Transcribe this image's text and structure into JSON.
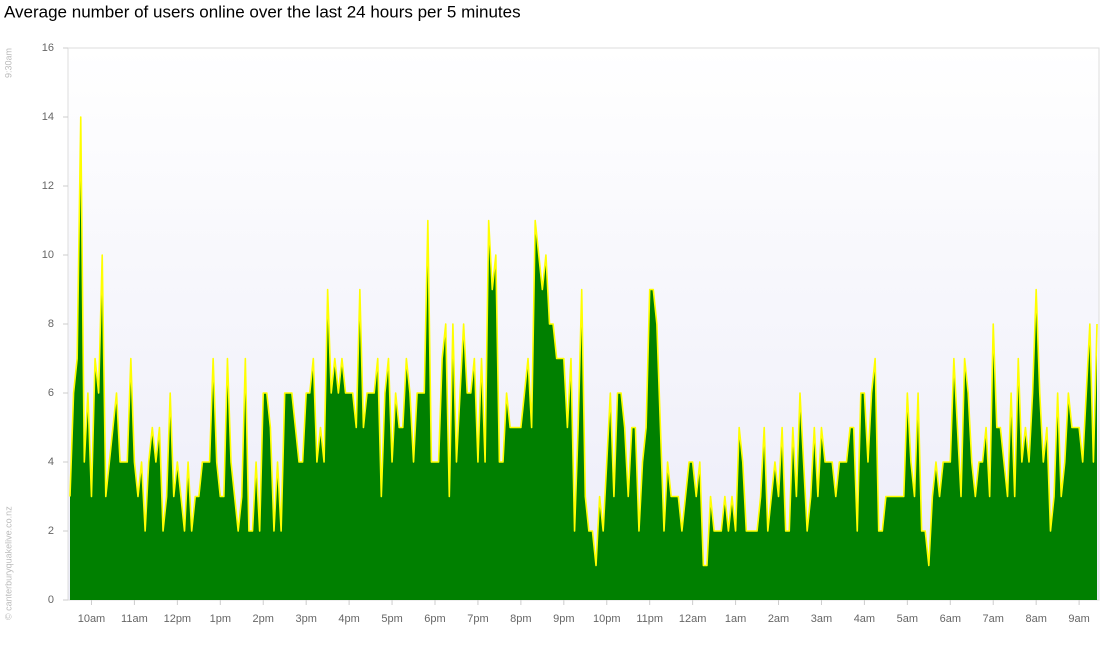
{
  "chart_data": {
    "type": "area",
    "title": "Average number of users online over the last 24 hours per 5 minutes",
    "start_label": "9:30am",
    "credit": "© canterburyquakelive.co.nz",
    "color": "#008000",
    "line_color": "#ffff00",
    "ylim": [
      0,
      16
    ],
    "yticks": [
      0,
      2,
      4,
      6,
      8,
      10,
      12,
      14,
      16
    ],
    "categories": [
      null,
      null,
      null,
      null,
      null,
      null,
      "10am",
      null,
      null,
      null,
      null,
      null,
      null,
      null,
      null,
      null,
      null,
      null,
      "11am",
      null,
      null,
      null,
      null,
      null,
      null,
      null,
      null,
      null,
      null,
      null,
      "12pm",
      null,
      null,
      null,
      null,
      null,
      null,
      null,
      null,
      null,
      null,
      null,
      "1pm",
      null,
      null,
      null,
      null,
      null,
      null,
      null,
      null,
      null,
      null,
      null,
      "2pm",
      null,
      null,
      null,
      null,
      null,
      null,
      null,
      null,
      null,
      null,
      null,
      "3pm",
      null,
      null,
      null,
      null,
      null,
      null,
      null,
      null,
      null,
      null,
      null,
      "4pm",
      null,
      null,
      null,
      null,
      null,
      null,
      null,
      null,
      null,
      null,
      null,
      "5pm",
      null,
      null,
      null,
      null,
      null,
      null,
      null,
      null,
      null,
      null,
      null,
      "6pm",
      null,
      null,
      null,
      null,
      null,
      null,
      null,
      null,
      null,
      null,
      null,
      "7pm",
      null,
      null,
      null,
      null,
      null,
      null,
      null,
      null,
      null,
      null,
      null,
      "8pm",
      null,
      null,
      null,
      null,
      null,
      null,
      null,
      null,
      null,
      null,
      null,
      "9pm",
      null,
      null,
      null,
      null,
      null,
      null,
      null,
      null,
      null,
      null,
      null,
      "10pm",
      null,
      null,
      null,
      null,
      null,
      null,
      null,
      null,
      null,
      null,
      null,
      "11pm",
      null,
      null,
      null,
      null,
      null,
      null,
      null,
      null,
      null,
      null,
      null,
      "12am",
      null,
      null,
      null,
      null,
      null,
      null,
      null,
      null,
      null,
      null,
      null,
      "1am",
      null,
      null,
      null,
      null,
      null,
      null,
      null,
      null,
      null,
      null,
      null,
      "2am",
      null,
      null,
      null,
      null,
      null,
      null,
      null,
      null,
      null,
      null,
      null,
      "3am",
      null,
      null,
      null,
      null,
      null,
      null,
      null,
      null,
      null,
      null,
      null,
      "4am",
      null,
      null,
      null,
      null,
      null,
      null,
      null,
      null,
      null,
      null,
      null,
      "5am",
      null,
      null,
      null,
      null,
      null,
      null,
      null,
      null,
      null,
      null,
      null,
      "6am",
      null,
      null,
      null,
      null,
      null,
      null,
      null,
      null,
      null,
      null,
      null,
      "7am",
      null,
      null,
      null,
      null,
      null,
      null,
      null,
      null,
      null,
      null,
      null,
      "8am",
      null,
      null,
      null,
      null,
      null,
      null,
      null,
      null,
      null,
      null,
      null,
      "9am",
      null,
      null,
      null,
      null,
      null
    ],
    "values": [
      3,
      6,
      7,
      14,
      4,
      6,
      3,
      7,
      6,
      10,
      3,
      4,
      5,
      6,
      4,
      4,
      4,
      7,
      4,
      3,
      4,
      2,
      4,
      5,
      4,
      5,
      2,
      3,
      6,
      3,
      4,
      3,
      2,
      4,
      2,
      3,
      3,
      4,
      4,
      4,
      7,
      4,
      3,
      3,
      7,
      4,
      3,
      2,
      3,
      7,
      2,
      2,
      4,
      2,
      6,
      6,
      5,
      2,
      4,
      2,
      6,
      6,
      6,
      5,
      4,
      4,
      6,
      6,
      7,
      4,
      5,
      4,
      9,
      6,
      7,
      6,
      7,
      6,
      6,
      6,
      5,
      9,
      5,
      6,
      6,
      6,
      7,
      3,
      6,
      7,
      4,
      6,
      5,
      5,
      7,
      6,
      4,
      6,
      6,
      6,
      11,
      4,
      4,
      4,
      7,
      8,
      3,
      8,
      4,
      6,
      8,
      6,
      6,
      7,
      4,
      7,
      4,
      11,
      9,
      10,
      4,
      4,
      6,
      5,
      5,
      5,
      5,
      6,
      7,
      5,
      11,
      10,
      9,
      10,
      8,
      8,
      7,
      7,
      7,
      5,
      7,
      2,
      5,
      9,
      3,
      2,
      2,
      1,
      3,
      2,
      4,
      6,
      3,
      6,
      6,
      5,
      3,
      5,
      5,
      2,
      4,
      5,
      9,
      9,
      8,
      5,
      2,
      4,
      3,
      3,
      3,
      2,
      3,
      4,
      4,
      3,
      4,
      1,
      1,
      3,
      2,
      2,
      2,
      3,
      2,
      3,
      2,
      5,
      4,
      2,
      2,
      2,
      2,
      3,
      5,
      2,
      3,
      4,
      3,
      5,
      2,
      2,
      5,
      3,
      6,
      4,
      2,
      3,
      5,
      3,
      5,
      4,
      4,
      4,
      3,
      4,
      4,
      4,
      5,
      5,
      2,
      6,
      6,
      4,
      6,
      7,
      2,
      2,
      3,
      3,
      3,
      3,
      3,
      3,
      6,
      4,
      3,
      6,
      2,
      2,
      1,
      3,
      4,
      3,
      4,
      4,
      4,
      7,
      5,
      3,
      7,
      6,
      4,
      3,
      4,
      4,
      5,
      3,
      8,
      5,
      5,
      4,
      3,
      6,
      3,
      7,
      4,
      5,
      4,
      6,
      9,
      6,
      4,
      5,
      2,
      3,
      6,
      3,
      4,
      6,
      5,
      5,
      5,
      4,
      6,
      8,
      4,
      8
    ]
  }
}
